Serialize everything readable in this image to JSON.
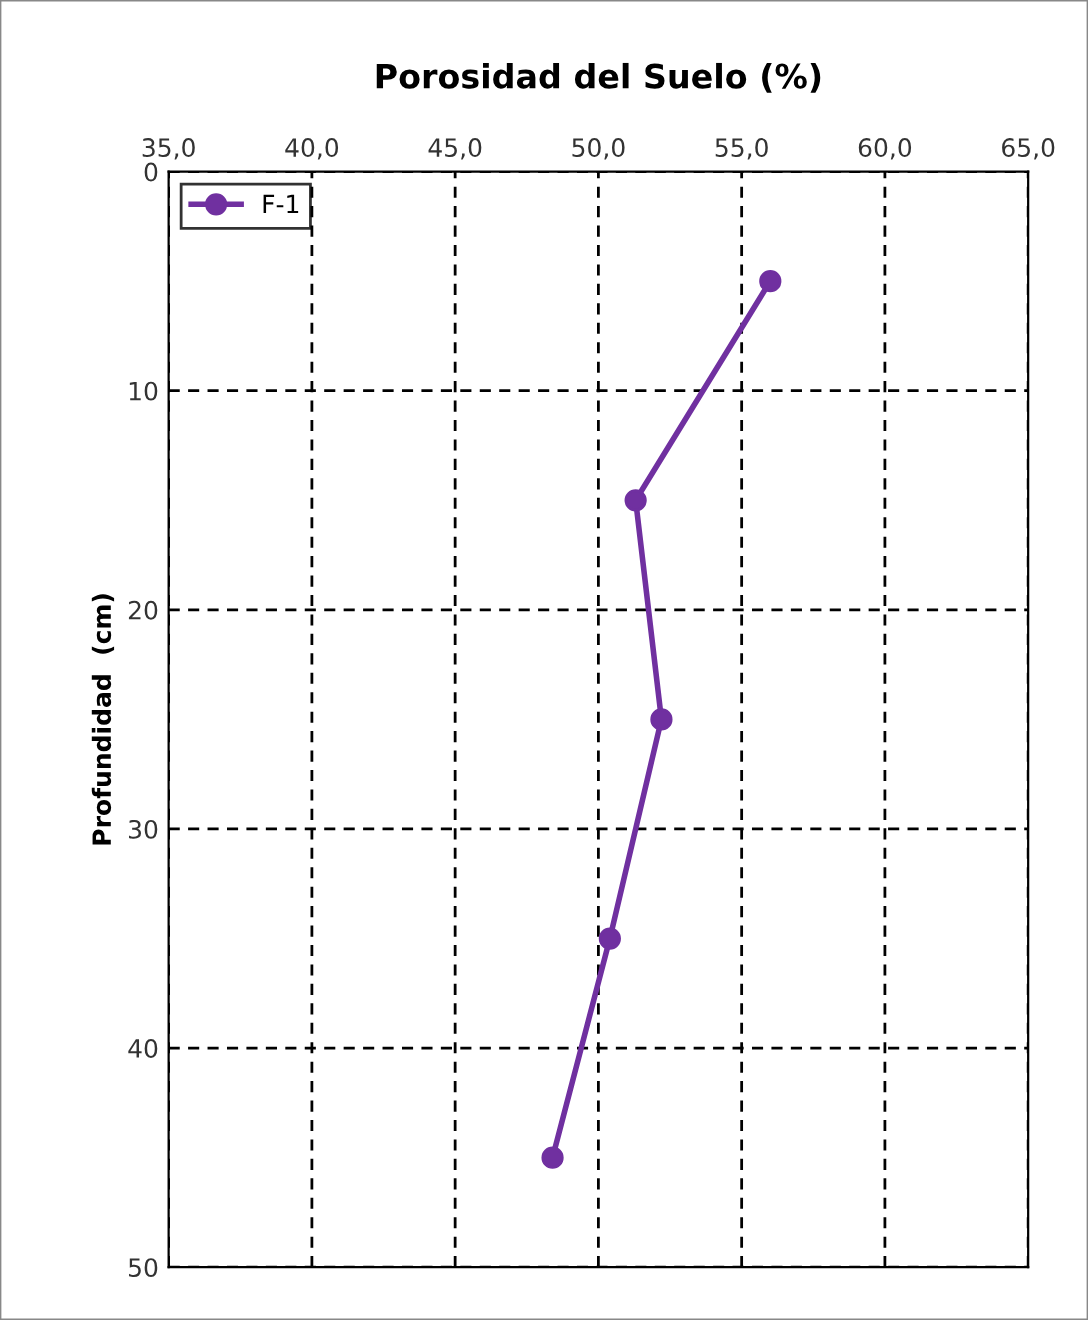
{
  "chart_data": {
    "type": "line",
    "title": "Porosidad del Suelo (%)",
    "ylabel": "Profundidad  (cm)",
    "series": [
      {
        "name": "F-1",
        "color": "#7030a0",
        "x": [
          56.0,
          51.3,
          52.2,
          50.4,
          48.4
        ],
        "values": [
          5,
          15,
          25,
          35,
          45
        ]
      }
    ],
    "xlim": [
      35,
      65
    ],
    "xticks": [
      {
        "value": 35,
        "label": "35,0"
      },
      {
        "value": 40,
        "label": "40,0"
      },
      {
        "value": 45,
        "label": "45,0"
      },
      {
        "value": 50,
        "label": "50,0"
      },
      {
        "value": 55,
        "label": "55,0"
      },
      {
        "value": 60,
        "label": "60,0"
      },
      {
        "value": 65,
        "label": "65,0"
      }
    ],
    "ylim": [
      50,
      0
    ],
    "yticks": [
      0,
      10,
      20,
      30,
      40,
      50
    ],
    "grid": true,
    "legend": "top left",
    "marker": "circle",
    "line_style": "solid"
  }
}
